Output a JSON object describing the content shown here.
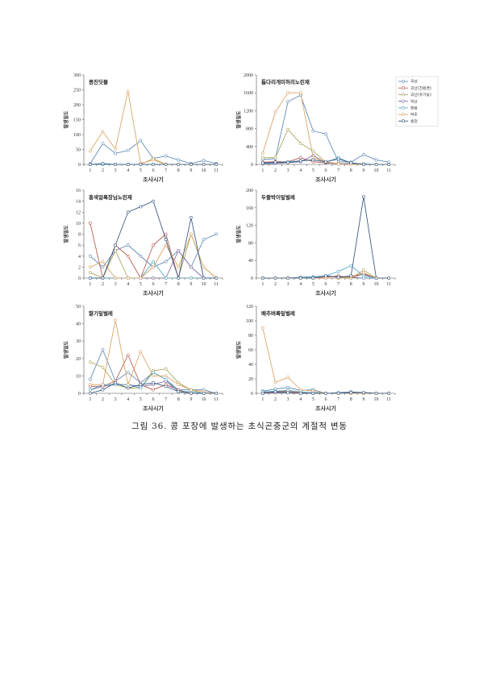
{
  "page": {
    "caption": "그림 36. 콩 포장에 발생하는 초식곤충군의 계절적 변동"
  },
  "legend": {
    "placement": "top-right",
    "items": [
      {
        "name": "곡성",
        "color": "#5a86b5"
      },
      {
        "name": "괴산(친환경)",
        "color": "#b8584f"
      },
      {
        "name": "괴산(유기농)",
        "color": "#a9a457"
      },
      {
        "name": "익산",
        "color": "#8168a4"
      },
      {
        "name": "정읍",
        "color": "#52a9c2"
      },
      {
        "name": "파주",
        "color": "#dba060"
      },
      {
        "name": "홍천",
        "color": "#34557c"
      }
    ]
  },
  "chart_data": [
    {
      "type": "line",
      "title": "콩진딧물",
      "xlabel": "조사시기",
      "ylabel": "발생밀도",
      "grid": false,
      "x": [
        1,
        2,
        3,
        4,
        5,
        6,
        7,
        8,
        9,
        10,
        11
      ],
      "ylim": [
        0,
        300
      ],
      "yticks": [
        0,
        50,
        100,
        150,
        200,
        250,
        300
      ],
      "series": [
        {
          "name": "곡성",
          "values": [
            2,
            70,
            37,
            47,
            80,
            20,
            28,
            15,
            3,
            13,
            3
          ]
        },
        {
          "name": "괴산(친환경)",
          "values": [
            0,
            0,
            0,
            0,
            0,
            0,
            0,
            0,
            0,
            0,
            0
          ]
        },
        {
          "name": "괴산(유기농)",
          "values": [
            0,
            0,
            0,
            0,
            0,
            20,
            0,
            0,
            0,
            0,
            0
          ]
        },
        {
          "name": "익산",
          "values": [
            0,
            0,
            0,
            0,
            0,
            0,
            0,
            0,
            0,
            0,
            0
          ]
        },
        {
          "name": "정읍",
          "values": [
            0,
            0,
            0,
            0,
            0,
            0,
            0,
            0,
            0,
            0,
            0
          ]
        },
        {
          "name": "파주",
          "values": [
            45,
            110,
            52,
            245,
            3,
            15,
            0,
            0,
            0,
            0,
            0
          ]
        },
        {
          "name": "홍천",
          "values": [
            0,
            3,
            0,
            0,
            0,
            0,
            0,
            0,
            0,
            0,
            0
          ]
        }
      ]
    },
    {
      "type": "line",
      "title": "톱다리개미허리노린재",
      "xlabel": "조사시기",
      "ylabel": "발생밀도",
      "grid": false,
      "x": [
        1,
        2,
        3,
        4,
        5,
        6,
        7,
        8,
        9,
        10,
        11
      ],
      "ylim": [
        0,
        2000
      ],
      "yticks": [
        0,
        400,
        800,
        1200,
        1600,
        2000
      ],
      "series": [
        {
          "name": "곡성",
          "values": [
            110,
            130,
            1400,
            1550,
            750,
            680,
            60,
            50,
            220,
            100,
            50
          ]
        },
        {
          "name": "괴산(친환경)",
          "values": [
            50,
            60,
            60,
            150,
            60,
            30,
            20,
            10,
            5,
            0,
            0
          ]
        },
        {
          "name": "괴산(유기농)",
          "values": [
            150,
            150,
            780,
            470,
            300,
            50,
            20,
            10,
            0,
            0,
            0
          ]
        },
        {
          "name": "익산",
          "values": [
            10,
            20,
            40,
            60,
            200,
            40,
            10,
            20,
            0,
            0,
            0
          ]
        },
        {
          "name": "정읍",
          "values": [
            20,
            40,
            60,
            80,
            100,
            50,
            150,
            30,
            10,
            0,
            0
          ]
        },
        {
          "name": "파주",
          "values": [
            250,
            1170,
            1600,
            1600,
            150,
            60,
            10,
            0,
            0,
            0,
            0
          ]
        },
        {
          "name": "홍천",
          "values": [
            30,
            50,
            40,
            80,
            100,
            60,
            120,
            40,
            0,
            0,
            0
          ]
        }
      ]
    },
    {
      "type": "line",
      "title": "홍색얼룩장님노린재",
      "xlabel": "조사시기",
      "ylabel": "발생밀도",
      "grid": false,
      "x": [
        1,
        2,
        3,
        4,
        5,
        6,
        7,
        8,
        9,
        10,
        11
      ],
      "ylim": [
        0,
        16
      ],
      "yticks": [
        0,
        2,
        4,
        6,
        8,
        10,
        12,
        14,
        16
      ],
      "series": [
        {
          "name": "곡성",
          "values": [
            4,
            2,
            5,
            6,
            4,
            2,
            3,
            5,
            2,
            7,
            8
          ]
        },
        {
          "name": "괴산(친환경)",
          "values": [
            10,
            0,
            6,
            4,
            0,
            6,
            8,
            0,
            0,
            0,
            0
          ]
        },
        {
          "name": "괴산(유기농)",
          "values": [
            1,
            0,
            5,
            0,
            0,
            0,
            0,
            0,
            8,
            2,
            0
          ]
        },
        {
          "name": "익산",
          "values": [
            0,
            0,
            0,
            0,
            0,
            0,
            0,
            5,
            2,
            0,
            0
          ]
        },
        {
          "name": "정읍",
          "values": [
            0,
            0,
            0,
            0,
            0,
            3,
            0,
            0,
            0,
            0,
            0
          ]
        },
        {
          "name": "파주",
          "values": [
            2,
            3,
            0,
            0,
            0,
            2,
            6,
            2,
            8,
            2,
            0
          ]
        },
        {
          "name": "홍천",
          "values": [
            0,
            0,
            6,
            12,
            13,
            14,
            7,
            0,
            11,
            0,
            0
          ]
        }
      ]
    },
    {
      "type": "line",
      "title": "두줄박이잎벌레",
      "xlabel": "조사시기",
      "ylabel": "발생밀도",
      "grid": false,
      "x": [
        1,
        2,
        3,
        4,
        5,
        6,
        7,
        8,
        9,
        10,
        11
      ],
      "ylim": [
        0,
        200
      ],
      "yticks": [
        0,
        40,
        80,
        120,
        160,
        200
      ],
      "series": [
        {
          "name": "곡성",
          "values": [
            0,
            0,
            0,
            2,
            3,
            5,
            3,
            2,
            0,
            0,
            0
          ]
        },
        {
          "name": "괴산(친환경)",
          "values": [
            0,
            0,
            0,
            0,
            0,
            2,
            5,
            0,
            10,
            0,
            0
          ]
        },
        {
          "name": "괴산(유기농)",
          "values": [
            0,
            0,
            0,
            0,
            0,
            0,
            0,
            0,
            18,
            0,
            0
          ]
        },
        {
          "name": "익산",
          "values": [
            0,
            0,
            0,
            0,
            0,
            0,
            0,
            5,
            8,
            0,
            0
          ]
        },
        {
          "name": "정읍",
          "values": [
            0,
            0,
            0,
            0,
            2,
            5,
            15,
            28,
            5,
            0,
            0
          ]
        },
        {
          "name": "파주",
          "values": [
            0,
            0,
            0,
            0,
            0,
            0,
            0,
            3,
            12,
            0,
            0
          ]
        },
        {
          "name": "홍천",
          "values": [
            0,
            0,
            0,
            0,
            0,
            5,
            2,
            5,
            185,
            0,
            0
          ]
        }
      ]
    },
    {
      "type": "line",
      "title": "딸기잎벌레",
      "xlabel": "조사시기",
      "ylabel": "발생밀도",
      "grid": false,
      "x": [
        1,
        2,
        3,
        4,
        5,
        6,
        7,
        8,
        9,
        10,
        11
      ],
      "ylim": [
        0,
        50
      ],
      "yticks": [
        0,
        10,
        20,
        30,
        40,
        50
      ],
      "series": [
        {
          "name": "곡성",
          "values": [
            8,
            25,
            7,
            12,
            6,
            12,
            8,
            2,
            2,
            2,
            0
          ]
        },
        {
          "name": "괴산(친환경)",
          "values": [
            4,
            4,
            7,
            22,
            5,
            2,
            5,
            2,
            0,
            0,
            0
          ]
        },
        {
          "name": "괴산(유기농)",
          "values": [
            18,
            15,
            5,
            3,
            3,
            13,
            14,
            6,
            2,
            0,
            0
          ]
        },
        {
          "name": "익산",
          "values": [
            2,
            4,
            5,
            5,
            4,
            5,
            7,
            1,
            0,
            0,
            0
          ]
        },
        {
          "name": "정읍",
          "values": [
            2,
            5,
            5,
            5,
            3,
            12,
            8,
            1,
            1,
            0,
            0
          ]
        },
        {
          "name": "파주",
          "values": [
            5,
            5,
            42,
            5,
            24,
            10,
            10,
            5,
            2,
            1,
            0
          ]
        },
        {
          "name": "홍천",
          "values": [
            0,
            2,
            6,
            3,
            5,
            6,
            4,
            1,
            0,
            0,
            0
          ]
        }
      ]
    },
    {
      "type": "line",
      "title": "배추벼룩잎벌레",
      "xlabel": "조사시기",
      "ylabel": "발생밀도",
      "grid": false,
      "x": [
        1,
        2,
        3,
        4,
        5,
        6,
        7,
        8,
        9,
        10,
        11
      ],
      "ylim": [
        0,
        120
      ],
      "yticks": [
        0,
        20,
        40,
        60,
        80,
        100,
        120
      ],
      "series": [
        {
          "name": "곡성",
          "values": [
            3,
            6,
            8,
            4,
            5,
            0,
            1,
            2,
            1,
            0,
            0
          ]
        },
        {
          "name": "괴산(친환경)",
          "values": [
            1,
            2,
            3,
            1,
            0,
            0,
            0,
            1,
            0,
            0,
            0
          ]
        },
        {
          "name": "괴산(유기농)",
          "values": [
            0,
            1,
            2,
            0,
            0,
            0,
            0,
            0,
            0,
            0,
            0
          ]
        },
        {
          "name": "익산",
          "values": [
            0,
            1,
            1,
            0,
            0,
            0,
            0,
            0,
            0,
            0,
            0
          ]
        },
        {
          "name": "정읍",
          "values": [
            2,
            3,
            4,
            2,
            1,
            0,
            0,
            1,
            0,
            0,
            0
          ]
        },
        {
          "name": "파주",
          "values": [
            90,
            15,
            22,
            5,
            3,
            0,
            0,
            0,
            0,
            0,
            0
          ]
        },
        {
          "name": "홍천",
          "values": [
            0,
            2,
            1,
            0,
            0,
            0,
            0,
            1,
            1,
            0,
            0
          ]
        }
      ]
    }
  ]
}
